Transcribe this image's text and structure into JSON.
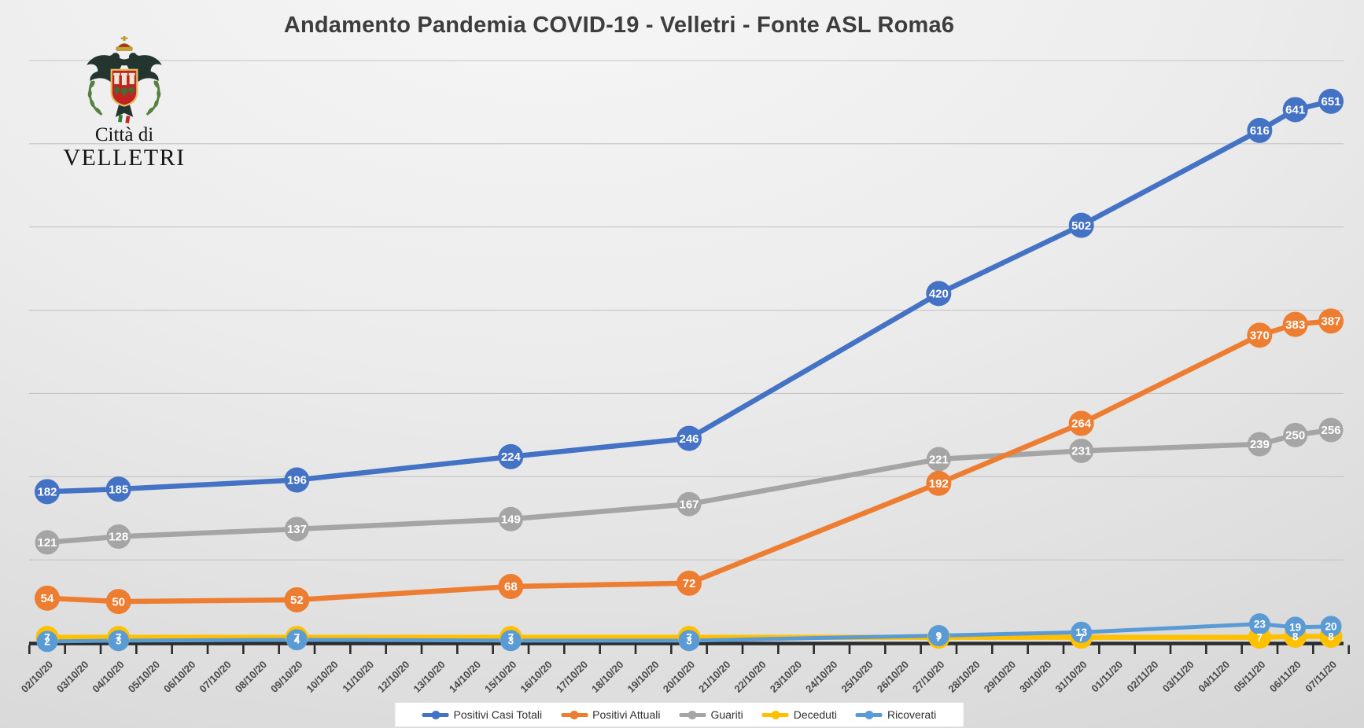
{
  "title": "Andamento Pandemia COVID-19 - Velletri - Fonte ASL Roma6",
  "logo": {
    "line1": "Città di",
    "line2": "VELLETRI"
  },
  "chart_data": {
    "type": "line",
    "title": "Andamento Pandemia COVID-19 - Velletri - Fonte ASL Roma6",
    "x_axis_labels": [
      "02/10/20",
      "03/10/20",
      "04/10/20",
      "05/10/20",
      "06/10/20",
      "07/10/20",
      "08/10/20",
      "09/10/20",
      "10/10/20",
      "11/10/20",
      "12/10/20",
      "13/10/20",
      "14/10/20",
      "15/10/20",
      "16/10/20",
      "17/10/20",
      "18/10/20",
      "19/10/20",
      "20/10/20",
      "21/10/20",
      "22/10/20",
      "23/10/20",
      "24/10/20",
      "25/10/20",
      "26/10/20",
      "27/10/20",
      "28/10/20",
      "29/10/20",
      "30/10/20",
      "31/10/20",
      "01/11/20",
      "02/11/20",
      "03/11/20",
      "04/11/20",
      "05/11/20",
      "06/11/20",
      "07/11/20"
    ],
    "point_dates": [
      "02/10/20",
      "04/10/20",
      "09/10/20",
      "15/10/20",
      "20/10/20",
      "27/10/20",
      "31/10/20",
      "05/11/20",
      "06/11/20",
      "07/11/20"
    ],
    "data_indices": [
      0,
      2,
      7,
      13,
      18,
      25,
      29,
      34,
      35,
      36
    ],
    "series": [
      {
        "name": "Positivi Casi Totali",
        "color": "#4472C4",
        "values": [
          182,
          185,
          196,
          224,
          246,
          420,
          502,
          616,
          641,
          651
        ]
      },
      {
        "name": "Positivi Attuali",
        "color": "#ED7D31",
        "values": [
          54,
          50,
          52,
          68,
          72,
          192,
          264,
          370,
          383,
          387
        ]
      },
      {
        "name": "Guariti",
        "color": "#A5A5A5",
        "values": [
          121,
          128,
          137,
          149,
          167,
          221,
          231,
          239,
          250,
          256
        ]
      },
      {
        "name": "Deceduti",
        "color": "#FFC000",
        "values": [
          7,
          7,
          7,
          7,
          7,
          7,
          7,
          7,
          8,
          8
        ]
      },
      {
        "name": "Ricoverati",
        "color": "#5B9BD5",
        "values": [
          2,
          3,
          4,
          3,
          3,
          9,
          13,
          23,
          19,
          20
        ]
      }
    ],
    "ylim": [
      0,
      700
    ],
    "grid": true,
    "grid_step": 100,
    "y_axis_labels_visible": false,
    "legend_position": "bottom",
    "colors": {
      "grid": "#c4c4c4",
      "axis": "#2b2b2b",
      "tick_label": "#494949",
      "data_label": "#ffffff"
    }
  }
}
